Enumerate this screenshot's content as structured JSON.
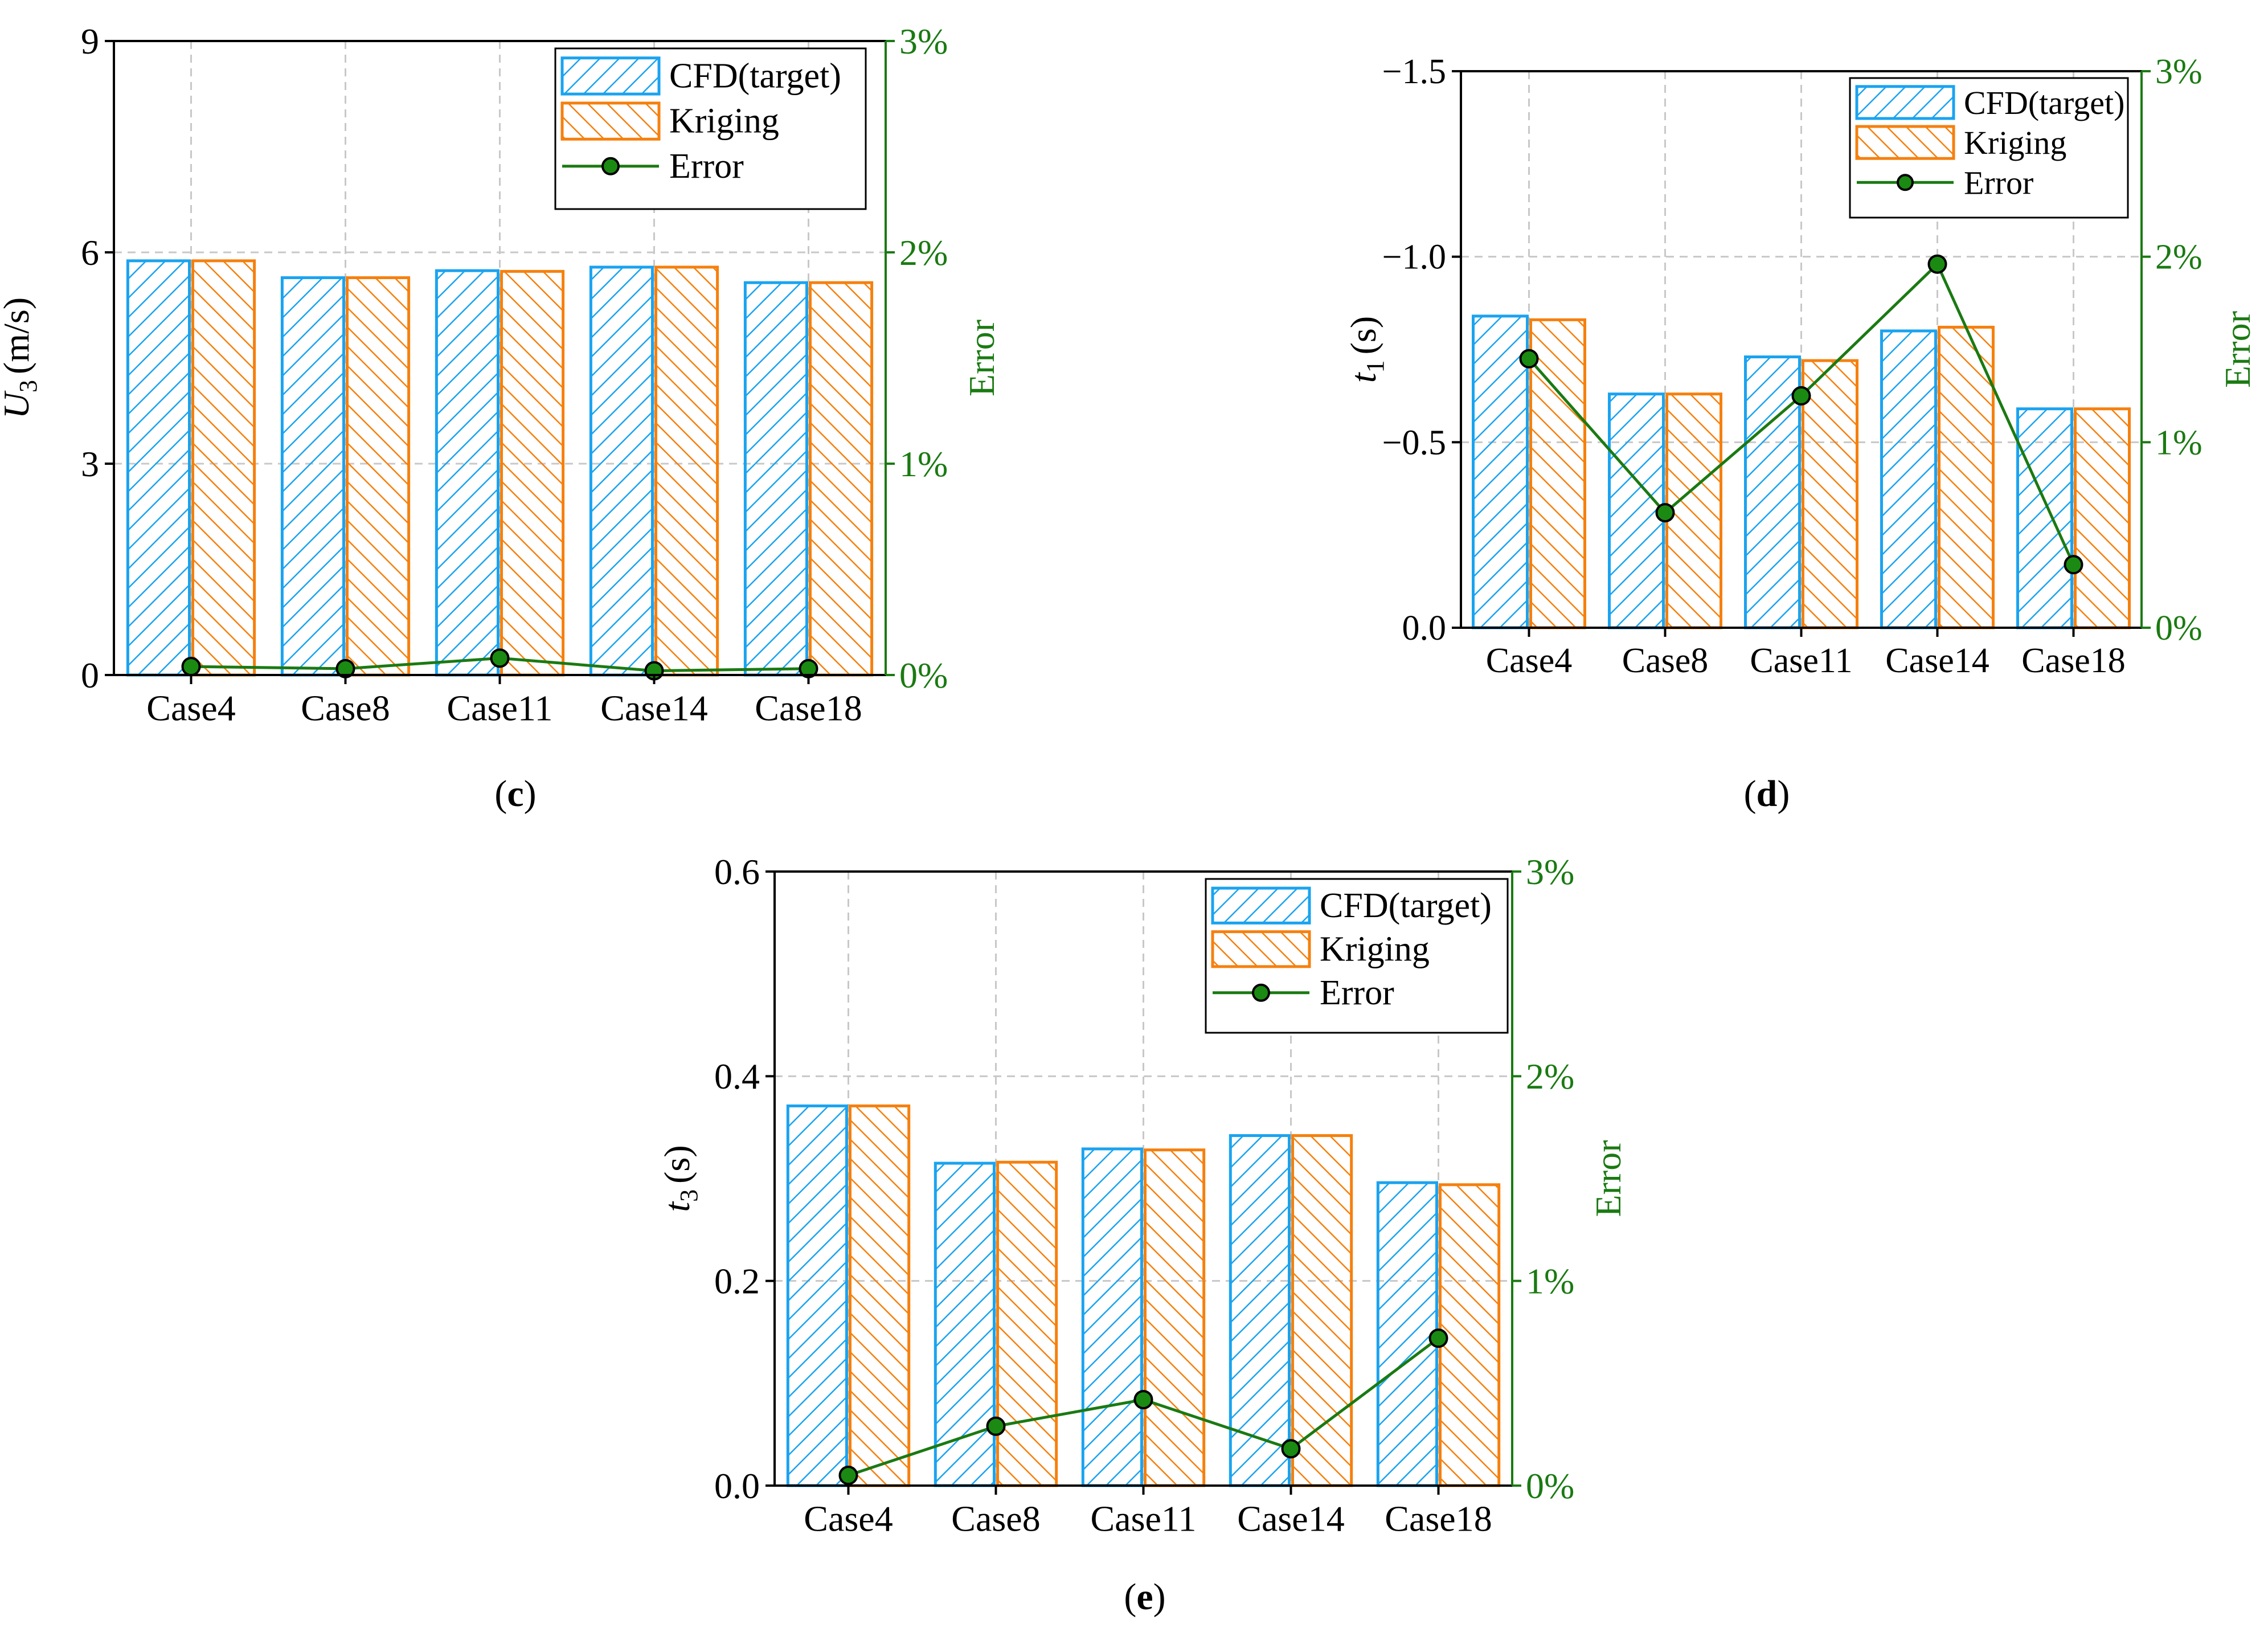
{
  "colors": {
    "cfd": "#1aa3f0",
    "kriging": "#f5800e",
    "error": "#1a7a12",
    "marker_fill": "#1a8a12",
    "grid": "#c8c8c8",
    "axis": "#000000"
  },
  "chart_data": [
    {
      "id": "c",
      "type": "bar",
      "panel_label": "(c)",
      "panel_letter": "c",
      "title": "",
      "ylabel_main": "U",
      "ylabel_sub": "3",
      "ylabel_unit": "(m/s)",
      "y2label": "Error",
      "categories": [
        "Case4",
        "Case8",
        "Case11",
        "Case14",
        "Case18"
      ],
      "ylim": [
        0,
        9
      ],
      "yticks": [
        0,
        3,
        6,
        9
      ],
      "ytick_labels": [
        "0",
        "3",
        "6",
        "9"
      ],
      "y2lim": [
        0,
        3
      ],
      "y2ticks": [
        0,
        1,
        2,
        3
      ],
      "y2tick_labels": [
        "0%",
        "1%",
        "2%",
        "3%"
      ],
      "series": [
        {
          "name": "CFD(target)",
          "kind": "bar",
          "values": [
            5.88,
            5.64,
            5.74,
            5.79,
            5.57
          ]
        },
        {
          "name": "Kriging",
          "kind": "bar",
          "values": [
            5.88,
            5.64,
            5.73,
            5.79,
            5.57
          ]
        },
        {
          "name": "Error",
          "kind": "line",
          "axis": "y2",
          "values": [
            0.04,
            0.03,
            0.08,
            0.02,
            0.03
          ]
        }
      ],
      "legend": [
        "CFD(target)",
        "Kriging",
        "Error"
      ],
      "legend_position": "top-right",
      "grid": true
    },
    {
      "id": "d",
      "type": "bar",
      "panel_label": "(d)",
      "panel_letter": "d",
      "title": "",
      "ylabel_main": "t",
      "ylabel_sub": "1",
      "ylabel_unit": "(s)",
      "y2label": "Error",
      "categories": [
        "Case4",
        "Case8",
        "Case11",
        "Case14",
        "Case18"
      ],
      "ylim": [
        0,
        -1.5
      ],
      "yticks": [
        0,
        -0.5,
        -1.0,
        -1.5
      ],
      "ytick_labels": [
        "0.0",
        "−0.5",
        "−1.0",
        "−1.5"
      ],
      "y2lim": [
        0,
        3
      ],
      "y2ticks": [
        0,
        1,
        2,
        3
      ],
      "y2tick_labels": [
        "0%",
        "1%",
        "2%",
        "3%"
      ],
      "series": [
        {
          "name": "CFD(target)",
          "kind": "bar",
          "values": [
            -0.84,
            -0.63,
            -0.73,
            -0.8,
            -0.59
          ]
        },
        {
          "name": "Kriging",
          "kind": "bar",
          "values": [
            -0.83,
            -0.63,
            -0.72,
            -0.81,
            -0.59
          ]
        },
        {
          "name": "Error",
          "kind": "line",
          "axis": "y2",
          "values": [
            1.45,
            0.62,
            1.25,
            1.96,
            0.34
          ]
        }
      ],
      "legend": [
        "CFD(target)",
        "Kriging",
        "Error"
      ],
      "legend_position": "top-right",
      "grid": true
    },
    {
      "id": "e",
      "type": "bar",
      "panel_label": "(e)",
      "panel_letter": "e",
      "title": "",
      "ylabel_main": "t",
      "ylabel_sub": "3",
      "ylabel_unit": "(s)",
      "y2label": "Error",
      "categories": [
        "Case4",
        "Case8",
        "Case11",
        "Case14",
        "Case18"
      ],
      "ylim": [
        0,
        0.6
      ],
      "yticks": [
        0,
        0.2,
        0.4,
        0.6
      ],
      "ytick_labels": [
        "0.0",
        "0.2",
        "0.4",
        "0.6"
      ],
      "y2lim": [
        0,
        3
      ],
      "y2ticks": [
        0,
        1,
        2,
        3
      ],
      "y2tick_labels": [
        "0%",
        "1%",
        "2%",
        "3%"
      ],
      "series": [
        {
          "name": "CFD(target)",
          "kind": "bar",
          "values": [
            0.371,
            0.315,
            0.329,
            0.342,
            0.296
          ]
        },
        {
          "name": "Kriging",
          "kind": "bar",
          "values": [
            0.371,
            0.316,
            0.328,
            0.342,
            0.294
          ]
        },
        {
          "name": "Error",
          "kind": "line",
          "axis": "y2",
          "values": [
            0.05,
            0.29,
            0.42,
            0.18,
            0.72
          ]
        }
      ],
      "legend": [
        "CFD(target)",
        "Kriging",
        "Error"
      ],
      "legend_position": "top-right",
      "grid": true
    }
  ]
}
